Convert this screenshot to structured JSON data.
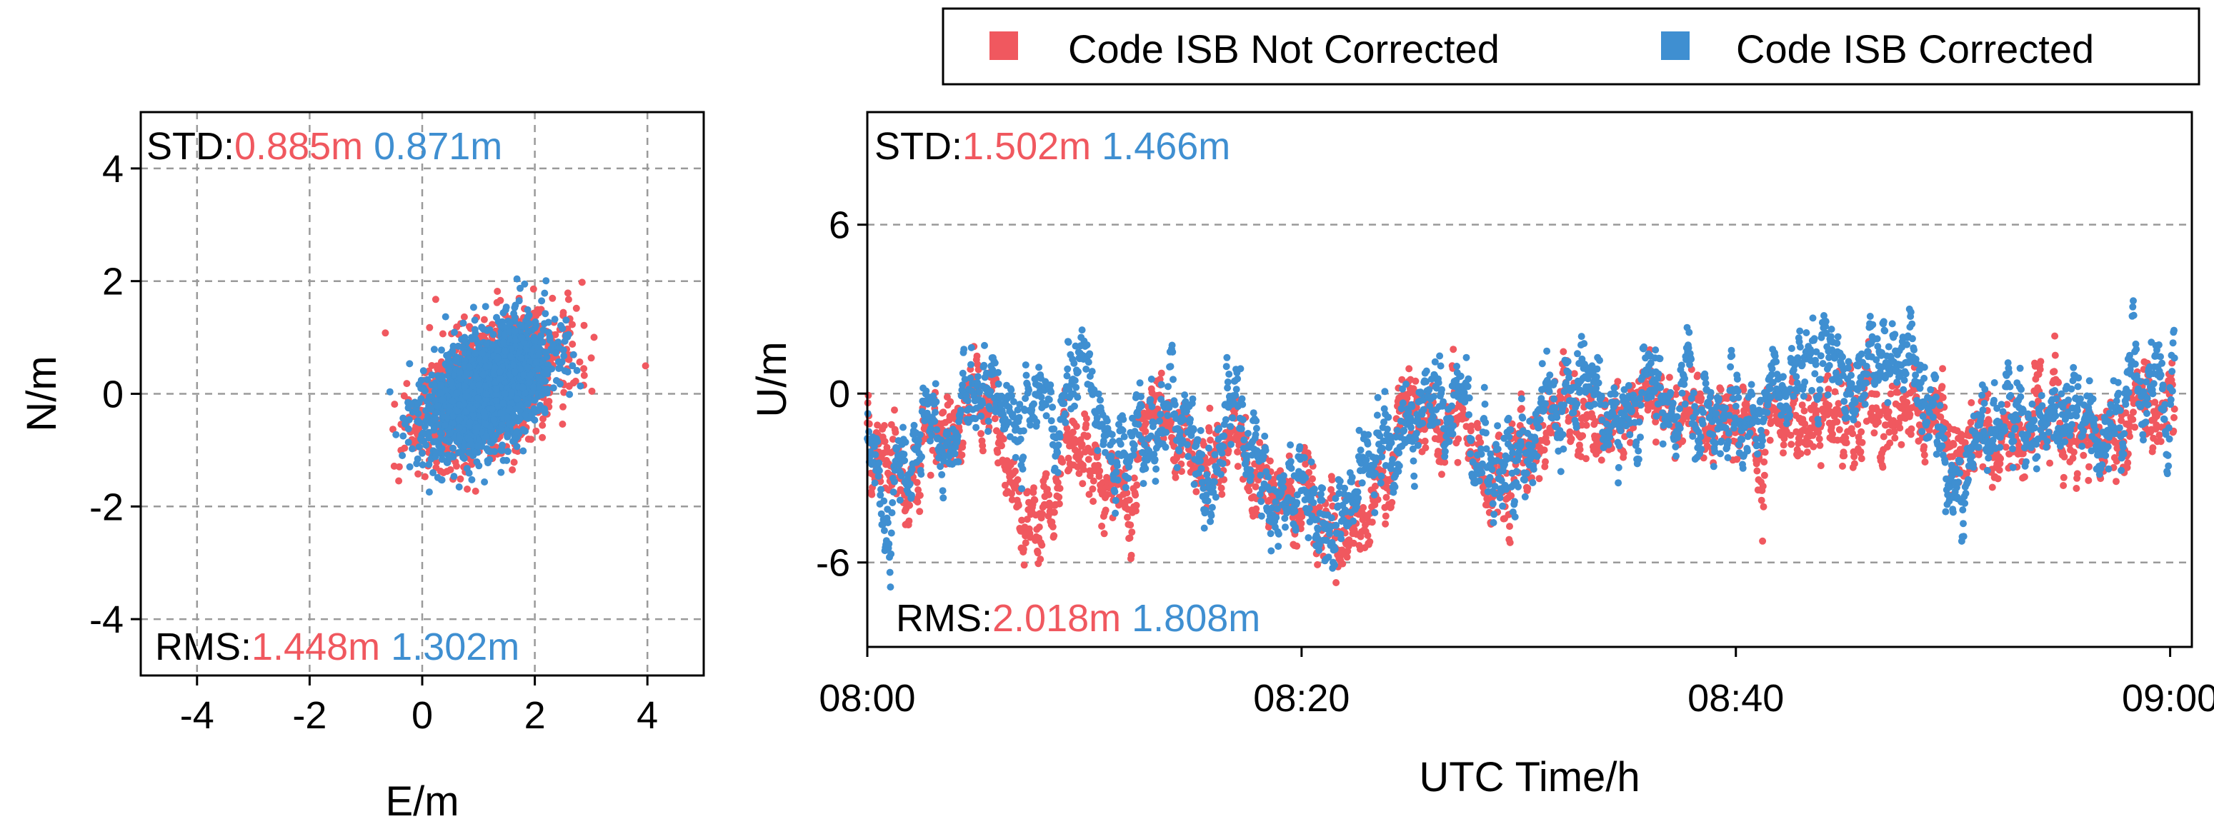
{
  "legend": {
    "items": [
      {
        "label": "Code ISB Not Corrected",
        "color": "#f0585f"
      },
      {
        "label": "Code ISB Corrected",
        "color": "#3f8fd1"
      }
    ]
  },
  "chart_data": [
    {
      "type": "scatter",
      "id": "en",
      "xlabel": "E/m",
      "ylabel": "N/m",
      "xlim": [
        -5,
        5
      ],
      "ylim": [
        -5,
        5
      ],
      "xticks": [
        -4,
        -2,
        0,
        2,
        4
      ],
      "yticks": [
        -4,
        -2,
        0,
        2,
        4
      ],
      "grid": true,
      "stats": {
        "std_prefix": "STD:",
        "rms_prefix": "RMS:",
        "std": [
          "0.885m",
          "0.871m"
        ],
        "rms": [
          "1.448m",
          "1.302m"
        ]
      },
      "series": [
        {
          "name": "Code ISB Not Corrected",
          "color": "#f0585f",
          "center": [
            1.2,
            0.1
          ],
          "spread": [
            0.6,
            0.6
          ],
          "corr": 0.45,
          "n": 1500,
          "seed": 11
        },
        {
          "name": "Code ISB Corrected",
          "color": "#3f8fd1",
          "center": [
            1.15,
            0.05
          ],
          "spread": [
            0.55,
            0.55
          ],
          "corr": 0.45,
          "n": 1800,
          "seed": 23
        }
      ]
    },
    {
      "type": "scatter",
      "id": "up",
      "xlabel": "UTC Time/h",
      "ylabel": "U/m",
      "xlim": [
        0,
        61
      ],
      "ylim": [
        -9,
        10
      ],
      "xticks": [
        0,
        20,
        40,
        60
      ],
      "xtick_labels": [
        "08:00",
        "08:20",
        "08:40",
        "09:00"
      ],
      "yticks": [
        -6,
        0,
        6
      ],
      "grid": true,
      "stats": {
        "std_prefix": "STD:",
        "rms_prefix": "RMS:",
        "std": [
          "1.502m",
          "1.466m"
        ],
        "rms": [
          "2.018m",
          "1.808m"
        ]
      },
      "trend_minutes": [
        0,
        1,
        2,
        3,
        4,
        5,
        6,
        7,
        8,
        9,
        10,
        11,
        12,
        13,
        14,
        15,
        16,
        17,
        18,
        19,
        20,
        21,
        22,
        23,
        24,
        25,
        26,
        27,
        28,
        29,
        30,
        31,
        32,
        33,
        34,
        35,
        36,
        37,
        38,
        39,
        40,
        41,
        42,
        43,
        44,
        45,
        46,
        47,
        48,
        49,
        50,
        51,
        52,
        53,
        54,
        55,
        56,
        57,
        58,
        59,
        60
      ],
      "series": [
        {
          "name": "Code ISB Not Corrected",
          "color": "#f0585f",
          "noise": 0.9,
          "n": 2600,
          "seed": 7,
          "trend": [
            -2.0,
            -3.0,
            -2.5,
            -1.5,
            -2.0,
            -0.5,
            -1.5,
            -3.5,
            -4.0,
            -2.0,
            -1.0,
            -3.0,
            -4.2,
            -1.5,
            -1.0,
            -2.5,
            -2.0,
            -1.0,
            -2.5,
            -3.2,
            -3.8,
            -4.2,
            -4.5,
            -4.6,
            -3.0,
            -0.5,
            -1.5,
            -0.2,
            -2.5,
            -3.2,
            -2.5,
            -2.0,
            -1.0,
            -1.0,
            -0.6,
            -1.0,
            -1.2,
            -0.5,
            -0.7,
            -1.0,
            -0.8,
            -1.5,
            -1.5,
            -0.5,
            -0.2,
            -0.6,
            -1.0,
            -1.2,
            -0.2,
            -0.5,
            -3.2,
            -1.5,
            -1.0,
            -1.0,
            -0.8,
            -1.5,
            -1.0,
            -1.6,
            -1.2,
            -0.5,
            -1.2
          ]
        },
        {
          "name": "Code ISB Corrected",
          "color": "#3f8fd1",
          "noise": 0.9,
          "n": 2600,
          "seed": 19,
          "trend": [
            -2.2,
            -4.0,
            -2.0,
            -1.0,
            -1.5,
            1.0,
            -0.5,
            -1.0,
            -0.5,
            -0.8,
            1.0,
            -2.0,
            -2.5,
            -1.5,
            -0.2,
            -2.5,
            -2.0,
            -0.8,
            -2.5,
            -3.0,
            -3.4,
            -3.6,
            -3.8,
            -3.2,
            -2.0,
            -0.2,
            -1.0,
            -0.6,
            -2.2,
            -2.6,
            -2.0,
            -1.5,
            -0.8,
            0.5,
            -1.2,
            -0.7,
            -0.8,
            0.2,
            -0.1,
            -0.3,
            0.0,
            -0.6,
            0.6,
            1.2,
            1.8,
            1.2,
            0.2,
            0.6,
            2.2,
            -0.5,
            -3.0,
            -1.2,
            -0.6,
            -0.4,
            -0.7,
            -1.0,
            -0.7,
            -1.1,
            -0.5,
            0.4,
            -0.2
          ]
        }
      ]
    }
  ]
}
